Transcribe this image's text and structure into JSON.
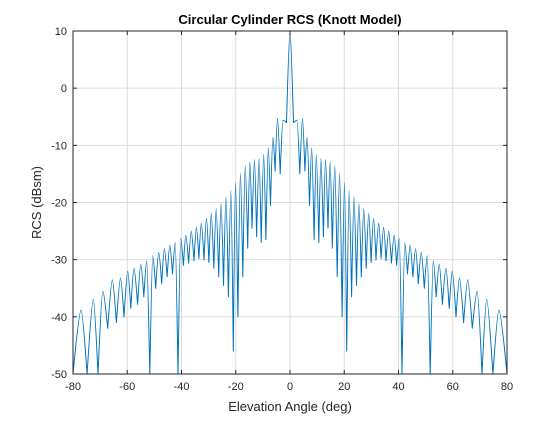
{
  "figure": {
    "background": "#ffffff"
  },
  "chart_data": {
    "type": "line",
    "title": "Circular Cylinder RCS (Knott Model)",
    "xlabel": "Elevation Angle (deg)",
    "ylabel": "RCS (dBsm)",
    "xlim": [
      -80,
      80
    ],
    "ylim": [
      -50,
      10
    ],
    "xticks": [
      -80,
      -60,
      -40,
      -20,
      0,
      20,
      40,
      60,
      80
    ],
    "yticks": [
      -50,
      -40,
      -30,
      -20,
      -10,
      0,
      10
    ],
    "grid": true,
    "line_color": "#0072BD",
    "series": [
      {
        "peaks": [
          [
            -77,
            -38.8
          ],
          [
            -72.5,
            -36.9
          ],
          [
            -69,
            -35.5
          ],
          [
            -65.5,
            -33.5
          ],
          [
            -62.5,
            -33.2
          ],
          [
            -59.8,
            -32.0
          ],
          [
            -57.5,
            -31.5
          ],
          [
            -55.0,
            -30.8
          ],
          [
            -52.8,
            -30.2
          ],
          [
            -50.6,
            -29.3
          ],
          [
            -48.4,
            -28.7
          ],
          [
            -46.3,
            -28.1
          ],
          [
            -44.3,
            -27.5
          ],
          [
            -42.3,
            -27.0
          ],
          [
            -40.3,
            -26.3
          ],
          [
            -38.4,
            -25.7
          ],
          [
            -36.4,
            -25.0
          ],
          [
            -34.5,
            -24.3
          ],
          [
            -32.7,
            -23.6
          ],
          [
            -30.8,
            -22.8
          ],
          [
            -29.0,
            -21.9
          ],
          [
            -27.2,
            -21.1
          ],
          [
            -25.4,
            -20.2
          ],
          [
            -23.6,
            -19.0
          ],
          [
            -21.8,
            -17.9
          ],
          [
            -20.1,
            -16.5
          ],
          [
            -18.3,
            -14.9
          ],
          [
            -16.5,
            -13.6
          ],
          [
            -14.8,
            -12.9
          ],
          [
            -13.1,
            -12.5
          ],
          [
            -11.4,
            -12.3
          ],
          [
            -9.7,
            -11.6
          ],
          [
            -8.0,
            -10.4
          ],
          [
            -6.3,
            -8.6
          ],
          [
            -4.6,
            -5.3
          ],
          [
            -2.6,
            -5.6
          ],
          [
            0.0,
            10.0
          ],
          [
            2.6,
            -5.6
          ],
          [
            4.6,
            -5.3
          ],
          [
            6.3,
            -8.6
          ],
          [
            8.0,
            -10.4
          ],
          [
            9.7,
            -11.6
          ],
          [
            11.4,
            -12.3
          ],
          [
            13.1,
            -12.5
          ],
          [
            14.8,
            -12.9
          ],
          [
            16.5,
            -13.6
          ],
          [
            18.3,
            -14.9
          ],
          [
            20.1,
            -16.5
          ],
          [
            21.8,
            -17.9
          ],
          [
            23.6,
            -19.0
          ],
          [
            25.4,
            -20.2
          ],
          [
            27.2,
            -21.1
          ],
          [
            29.0,
            -21.9
          ],
          [
            30.8,
            -22.8
          ],
          [
            32.7,
            -23.6
          ],
          [
            34.5,
            -24.3
          ],
          [
            36.4,
            -25.0
          ],
          [
            38.4,
            -25.7
          ],
          [
            40.3,
            -26.3
          ],
          [
            42.3,
            -27.0
          ],
          [
            44.3,
            -27.5
          ],
          [
            46.3,
            -28.1
          ],
          [
            48.4,
            -28.7
          ],
          [
            50.6,
            -29.3
          ],
          [
            52.8,
            -30.2
          ],
          [
            55.0,
            -30.8
          ],
          [
            57.5,
            -31.5
          ],
          [
            59.8,
            -32.0
          ],
          [
            62.5,
            -33.2
          ],
          [
            65.5,
            -33.5
          ],
          [
            69.0,
            -35.5
          ],
          [
            72.5,
            -36.9
          ],
          [
            77.0,
            -38.8
          ]
        ],
        "nulls": [
          [
            -80.0,
            -50.0
          ],
          [
            -74.8,
            -50.0
          ],
          [
            -70.8,
            -50.0
          ],
          [
            -67.2,
            -42.0
          ],
          [
            -64.0,
            -41.0
          ],
          [
            -61.2,
            -40.0
          ],
          [
            -58.7,
            -38.5
          ],
          [
            -56.2,
            -37.8
          ],
          [
            -53.9,
            -36.5
          ],
          [
            -51.7,
            -50.0
          ],
          [
            -49.5,
            -35.0
          ],
          [
            -47.3,
            -34.2
          ],
          [
            -45.3,
            -33.0
          ],
          [
            -43.3,
            -32.5
          ],
          [
            -41.3,
            -50.0
          ],
          [
            -39.3,
            -31.0
          ],
          [
            -37.4,
            -30.6
          ],
          [
            -35.4,
            -30.2
          ],
          [
            -33.6,
            -29.8
          ],
          [
            -31.7,
            -30.0
          ],
          [
            -29.9,
            -30.5
          ],
          [
            -28.1,
            -31.5
          ],
          [
            -26.3,
            -33.0
          ],
          [
            -24.5,
            -34.5
          ],
          [
            -22.7,
            -36.5
          ],
          [
            -20.9,
            -46.0
          ],
          [
            -19.2,
            -40.0
          ],
          [
            -17.4,
            -33.0
          ],
          [
            -15.6,
            -28.0
          ],
          [
            -14.0,
            -24.5
          ],
          [
            -12.3,
            -26.0
          ],
          [
            -10.6,
            -27.0
          ],
          [
            -8.9,
            -26.5
          ],
          [
            -7.2,
            -20.5
          ],
          [
            -5.5,
            -14.5
          ],
          [
            -3.6,
            -15.0
          ],
          [
            -1.3,
            -6.0
          ],
          [
            1.3,
            -6.0
          ],
          [
            3.6,
            -15.0
          ],
          [
            5.5,
            -14.5
          ],
          [
            7.2,
            -20.5
          ],
          [
            8.9,
            -26.5
          ],
          [
            10.6,
            -27.0
          ],
          [
            12.3,
            -26.0
          ],
          [
            14.0,
            -24.5
          ],
          [
            15.6,
            -28.0
          ],
          [
            17.4,
            -33.0
          ],
          [
            19.2,
            -40.0
          ],
          [
            20.9,
            -46.0
          ],
          [
            22.7,
            -36.5
          ],
          [
            24.5,
            -34.5
          ],
          [
            26.3,
            -33.0
          ],
          [
            28.1,
            -31.5
          ],
          [
            29.9,
            -30.5
          ],
          [
            31.7,
            -30.0
          ],
          [
            33.6,
            -29.8
          ],
          [
            35.4,
            -30.2
          ],
          [
            37.4,
            -30.6
          ],
          [
            39.3,
            -31.0
          ],
          [
            41.3,
            -50.0
          ],
          [
            43.3,
            -32.5
          ],
          [
            45.3,
            -33.0
          ],
          [
            47.3,
            -34.2
          ],
          [
            49.5,
            -35.0
          ],
          [
            51.7,
            -50.0
          ],
          [
            53.9,
            -36.5
          ],
          [
            56.2,
            -37.8
          ],
          [
            58.7,
            -38.5
          ],
          [
            61.2,
            -40.0
          ],
          [
            64.0,
            -41.0
          ],
          [
            67.2,
            -42.0
          ],
          [
            70.8,
            -50.0
          ],
          [
            74.8,
            -50.0
          ],
          [
            80.0,
            -50.0
          ]
        ]
      }
    ]
  }
}
